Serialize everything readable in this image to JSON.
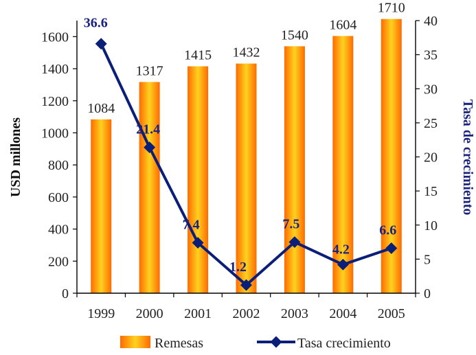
{
  "chart_data": {
    "type": "bar",
    "categories": [
      "1999",
      "2000",
      "2001",
      "2002",
      "2003",
      "2004",
      "2005"
    ],
    "series": [
      {
        "name": "Remesas",
        "type": "bar",
        "axis": "left",
        "values": [
          1084,
          1317,
          1415,
          1432,
          1540,
          1604,
          1710
        ],
        "labels": [
          "1084",
          "1317",
          "1415",
          "1432",
          "1540",
          "1604",
          "1710"
        ]
      },
      {
        "name": "Tasa crecimiento",
        "type": "line",
        "axis": "right",
        "marker": "diamond",
        "values": [
          36.6,
          21.4,
          7.4,
          1.2,
          7.5,
          4.2,
          6.6
        ],
        "labels": [
          "36.6",
          "21.4",
          "7.4",
          "1.2",
          "7.5",
          "4.2",
          "6.6"
        ]
      }
    ],
    "ylabel": "USD millones",
    "y2label": "Tasa de crecimiento",
    "ylim": [
      0,
      1700
    ],
    "y2lim": [
      0,
      40
    ],
    "yticks": [
      "0",
      "200",
      "400",
      "600",
      "800",
      "1000",
      "1200",
      "1400",
      "1600"
    ],
    "y2ticks": [
      "0",
      "5",
      "10",
      "15",
      "20",
      "25",
      "30",
      "35",
      "40"
    ],
    "grid": false,
    "legend_position": "bottom",
    "colors": {
      "bar_edge": "#ff6a00",
      "bar_center": "#ffd21f",
      "line": "#0b1f78",
      "line_labels": "#1a237e",
      "axis": "#000000"
    }
  }
}
